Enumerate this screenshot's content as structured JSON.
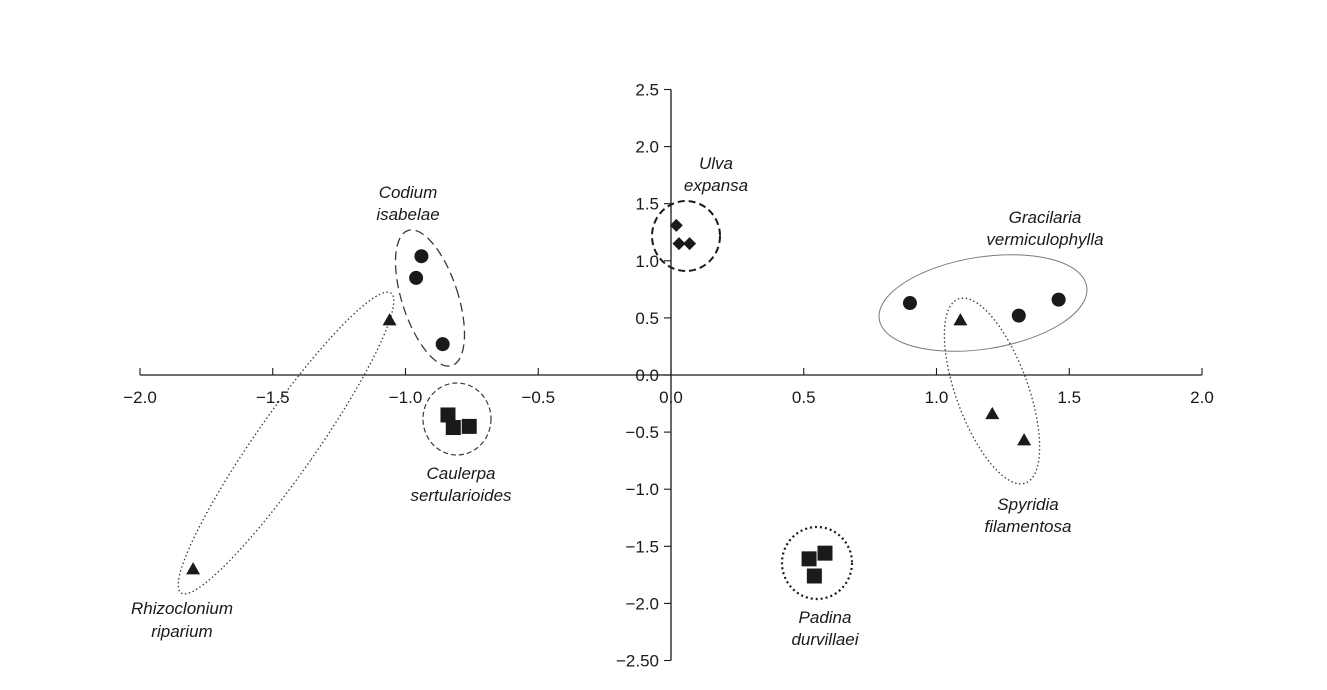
{
  "chart_data": {
    "type": "scatter",
    "title": "",
    "xlabel": "",
    "ylabel": "",
    "xlim": [
      -2.0,
      2.0
    ],
    "ylim": [
      -2.5,
      2.5
    ],
    "grid": false,
    "x_ticks": [
      -2.0,
      -1.5,
      -1.0,
      -0.5,
      0.0,
      0.5,
      1.0,
      1.5,
      2.0
    ],
    "x_tick_labels": [
      "−2.0",
      "−1.5",
      "−1.0",
      "−0.5",
      "0.0",
      "0.5",
      "1.0",
      "1.5",
      "2.0"
    ],
    "y_ticks": [
      2.5,
      2.0,
      1.5,
      1.0,
      0.5,
      0.0,
      -0.5,
      -1.0,
      -1.5,
      -2.0,
      -2.5
    ],
    "y_tick_labels": [
      "2.5",
      "2.0",
      "1.5",
      "1.0",
      "0.5",
      "0.0",
      "−0.5",
      "−1.0",
      "−1.5",
      "−2.0",
      "−2.50"
    ],
    "series": [
      {
        "marker": "circle",
        "points": [
          {
            "x": -0.94,
            "y": 1.04
          },
          {
            "x": -0.96,
            "y": 0.85
          },
          {
            "x": -0.86,
            "y": 0.27
          },
          {
            "x": 0.9,
            "y": 0.63
          },
          {
            "x": 1.31,
            "y": 0.52
          },
          {
            "x": 1.46,
            "y": 0.66
          }
        ]
      },
      {
        "marker": "triangle",
        "points": [
          {
            "x": -1.06,
            "y": 0.48
          },
          {
            "x": -1.8,
            "y": -1.7
          },
          {
            "x": 1.09,
            "y": 0.48
          },
          {
            "x": 1.21,
            "y": -0.34
          },
          {
            "x": 1.33,
            "y": -0.57
          }
        ]
      },
      {
        "marker": "square",
        "points": [
          {
            "x": -0.84,
            "y": -0.35
          },
          {
            "x": -0.82,
            "y": -0.46
          },
          {
            "x": -0.76,
            "y": -0.45
          },
          {
            "x": 0.52,
            "y": -1.61
          },
          {
            "x": 0.58,
            "y": -1.56
          },
          {
            "x": 0.54,
            "y": -1.76
          }
        ]
      },
      {
        "marker": "diamond",
        "points": [
          {
            "x": 0.02,
            "y": 1.31
          },
          {
            "x": 0.03,
            "y": 1.15
          },
          {
            "x": 0.07,
            "y": 1.15
          }
        ]
      }
    ],
    "groups": [
      {
        "lines": [
          "Codium",
          "isabelae"
        ],
        "style": "dashed"
      },
      {
        "lines": [
          "Ulva",
          "expansa"
        ],
        "style": "dashed-bold"
      },
      {
        "lines": [
          "Gracilaria",
          "vermiculophylla"
        ],
        "style": "solid-thin"
      },
      {
        "lines": [
          "Spyridia",
          "filamentosa"
        ],
        "style": "dotted"
      },
      {
        "lines": [
          "Rhizoclonium",
          "riparium"
        ],
        "style": "dotted"
      },
      {
        "lines": [
          "Caulerpa",
          "sertularioides"
        ],
        "style": "dashed-fine"
      },
      {
        "lines": [
          "Padina",
          "durvillaei"
        ],
        "style": "dotted-bold"
      }
    ]
  }
}
